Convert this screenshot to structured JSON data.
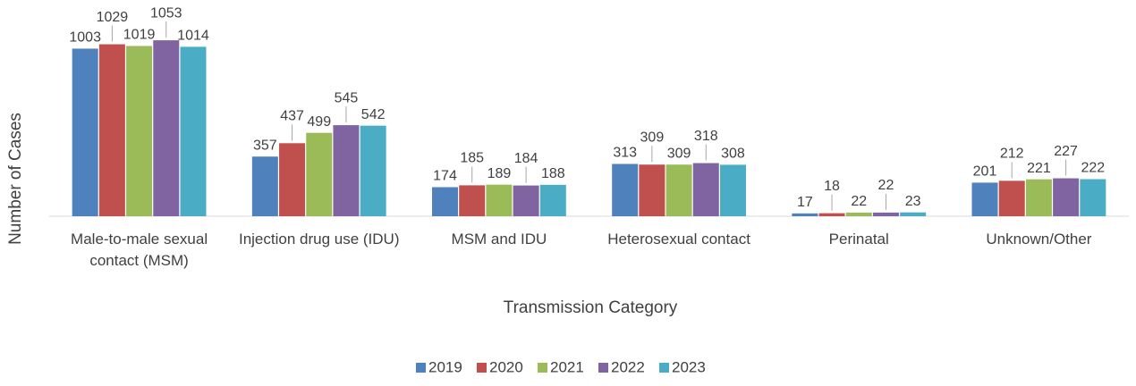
{
  "chart_data": {
    "type": "bar",
    "x_label": "Transmission Category",
    "y_label": "Number of Cases",
    "categories": [
      "Male-to-male sexual contact (MSM)",
      "Injection drug use (IDU)",
      "MSM and IDU",
      "Heterosexual contact",
      "Perinatal",
      "Unknown/Other"
    ],
    "series": [
      {
        "name": "2019",
        "color": "#4f81bd",
        "values": [
          1003,
          357,
          174,
          313,
          17,
          201
        ]
      },
      {
        "name": "2020",
        "color": "#c0504d",
        "values": [
          1029,
          437,
          185,
          309,
          18,
          212
        ]
      },
      {
        "name": "2021",
        "color": "#9bbb59",
        "values": [
          1019,
          499,
          189,
          309,
          22,
          221
        ]
      },
      {
        "name": "2022",
        "color": "#8064a2",
        "values": [
          1053,
          545,
          184,
          318,
          22,
          227
        ]
      },
      {
        "name": "2023",
        "color": "#4bacc6",
        "values": [
          1014,
          542,
          188,
          308,
          23,
          222
        ]
      }
    ],
    "ylim": [
      0,
      1200
    ],
    "legend": "bottom"
  }
}
